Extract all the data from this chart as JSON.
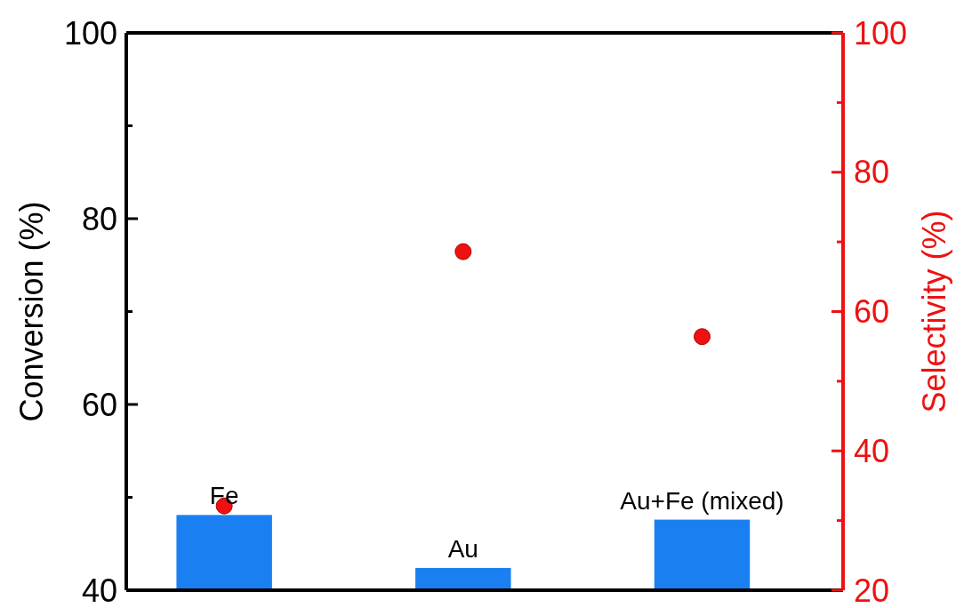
{
  "chart_data": {
    "type": "bar",
    "categories": [
      "Fe",
      "Au",
      "Au+Fe (mixed)"
    ],
    "ylabel": "Conversion (%)",
    "y2label": "Selectivity (%)",
    "ylim": [
      40,
      100
    ],
    "yticks": [
      40,
      {
        "value": 50,
        "label": null
      },
      60,
      {
        "value": 70,
        "label": null
      },
      80,
      {
        "value": 90,
        "label": null
      },
      100
    ],
    "y2lim": [
      20,
      100
    ],
    "y2ticks": [
      20,
      {
        "value": 30,
        "label": null
      },
      40,
      {
        "value": 50,
        "label": null
      },
      60,
      {
        "value": 70,
        "label": null
      },
      80,
      {
        "value": 90,
        "label": null
      },
      100
    ],
    "grid": false,
    "series": [
      {
        "color": "#1a80f2",
        "values": [
          48.1,
          42.4,
          47.6
        ]
      },
      {
        "type": "scatter",
        "axis": "y2",
        "color": "#ee1111",
        "marker": "circle",
        "values": [
          32.1,
          68.6,
          56.4
        ]
      }
    ]
  }
}
